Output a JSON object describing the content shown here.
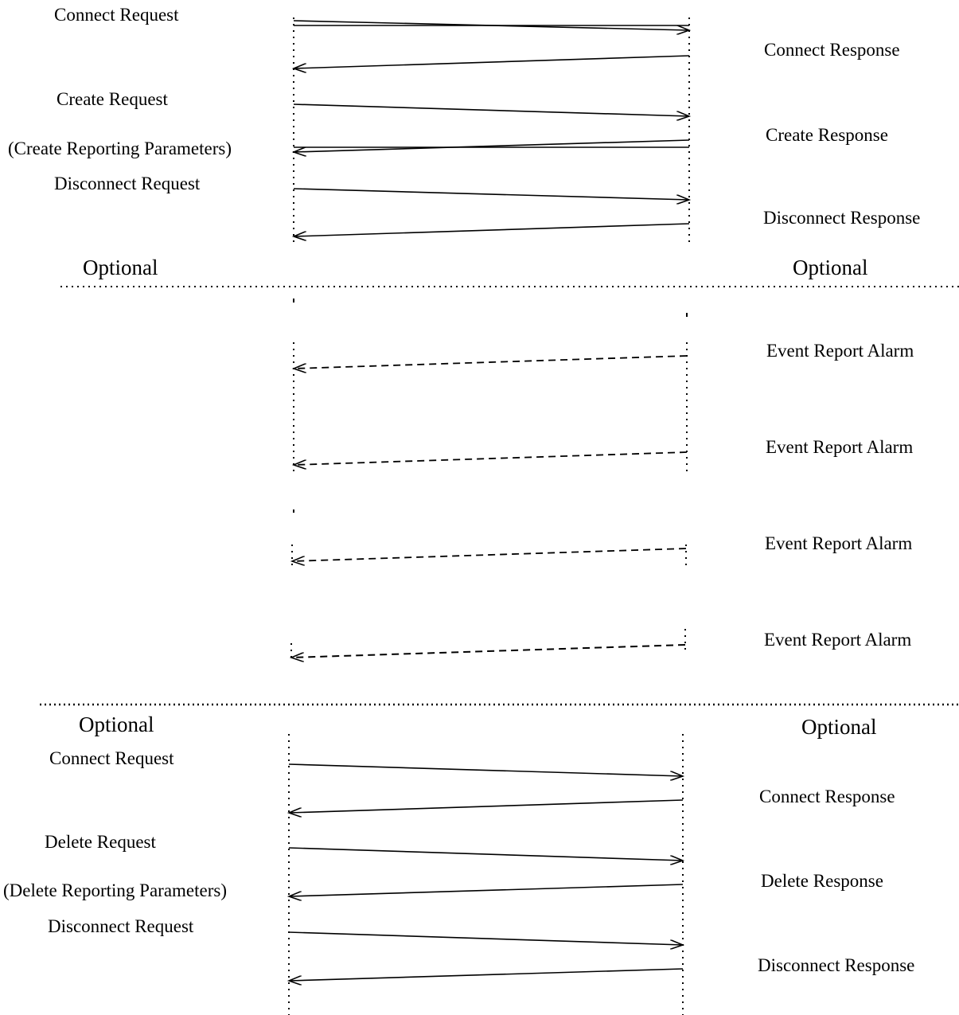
{
  "section_top": {
    "messages": [
      {
        "left_label": "Connect Request",
        "right_label": "",
        "direction": "to-right",
        "style": "solid"
      },
      {
        "left_label": "",
        "right_label": "Connect Response",
        "direction": "to-left",
        "style": "solid"
      },
      {
        "left_label": "Create Request",
        "right_label": "",
        "direction": "to-right",
        "style": "solid"
      },
      {
        "left_label": "(Create Reporting Parameters)",
        "right_label": "Create Response",
        "direction": "to-left",
        "style": "solid"
      },
      {
        "left_label": "Disconnect Request",
        "right_label": "",
        "direction": "to-right",
        "style": "solid"
      },
      {
        "left_label": "",
        "right_label": "Disconnect Response",
        "direction": "to-left",
        "style": "solid"
      }
    ]
  },
  "divider_1": {
    "left_label": "Optional",
    "right_label": "Optional"
  },
  "section_middle": {
    "messages": [
      {
        "right_label": "Event Report Alarm",
        "direction": "to-left",
        "style": "dashed"
      },
      {
        "right_label": "Event Report Alarm",
        "direction": "to-left",
        "style": "dashed"
      },
      {
        "right_label": "Event Report Alarm",
        "direction": "to-left",
        "style": "dashed"
      },
      {
        "right_label": "Event Report Alarm",
        "direction": "to-left",
        "style": "dashed"
      }
    ]
  },
  "divider_2": {
    "left_label": "Optional",
    "right_label": "Optional"
  },
  "section_bottom": {
    "messages": [
      {
        "left_label": "Connect Request",
        "right_label": "",
        "direction": "to-right",
        "style": "solid"
      },
      {
        "left_label": "",
        "right_label": "Connect Response",
        "direction": "to-left",
        "style": "solid"
      },
      {
        "left_label": "Delete Request",
        "right_label": "",
        "direction": "to-right",
        "style": "solid"
      },
      {
        "left_label": "(Delete Reporting Parameters)",
        "right_label": "Delete Response",
        "direction": "to-left",
        "style": "solid"
      },
      {
        "left_label": "Disconnect Request",
        "right_label": "",
        "direction": "to-right",
        "style": "solid"
      },
      {
        "left_label": "",
        "right_label": "Disconnect Response",
        "direction": "to-left",
        "style": "solid"
      }
    ]
  },
  "colors": {
    "ink": "#000000",
    "background": "#ffffff"
  }
}
